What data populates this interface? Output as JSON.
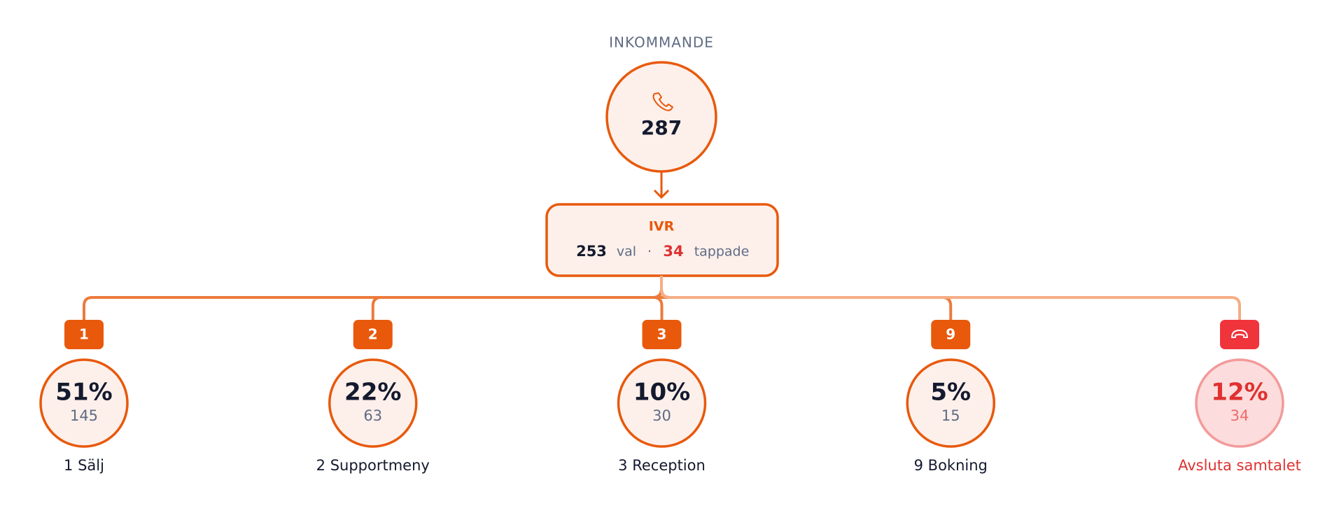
{
  "header": {
    "title": "INKOMMANDE"
  },
  "incoming": {
    "count": "287"
  },
  "ivr": {
    "title": "IVR",
    "choices": "253",
    "choices_label": "val",
    "separator": "·",
    "dropped": "34",
    "dropped_label": "tappade"
  },
  "branches": [
    {
      "key": "1",
      "percent": "51%",
      "count": "145",
      "label": "1 Sälj"
    },
    {
      "key": "2",
      "percent": "22%",
      "count": "63",
      "label": "2 Supportmeny"
    },
    {
      "key": "3",
      "percent": "10%",
      "count": "30",
      "label": "3 Reception"
    },
    {
      "key": "9",
      "percent": "5%",
      "count": "15",
      "label": "9 Bokning"
    },
    {
      "percent": "12%",
      "count": "34",
      "label": "Avsluta samtalet"
    }
  ]
}
